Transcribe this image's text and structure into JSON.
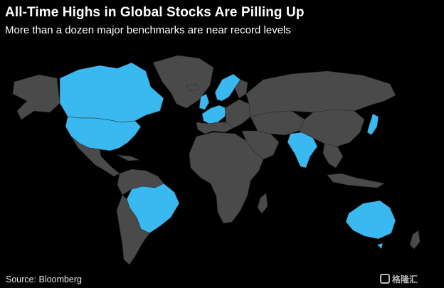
{
  "header": {
    "title": "All-Time Highs in Global Stocks Are Pilling Up",
    "subtitle": "More than a dozen major benchmarks are near record levels"
  },
  "footer": {
    "source": "Source: Bloomberg",
    "watermark": "格隆汇"
  },
  "map": {
    "highlight_color": "#3ab8f0",
    "land_color": "#4a4a4a",
    "background_color": "#000000",
    "highlighted_countries": [
      "Canada",
      "United States",
      "Brazil",
      "United Kingdom",
      "France",
      "Germany",
      "Netherlands",
      "Switzerland",
      "Denmark",
      "Sweden",
      "India",
      "Japan",
      "Australia"
    ]
  }
}
